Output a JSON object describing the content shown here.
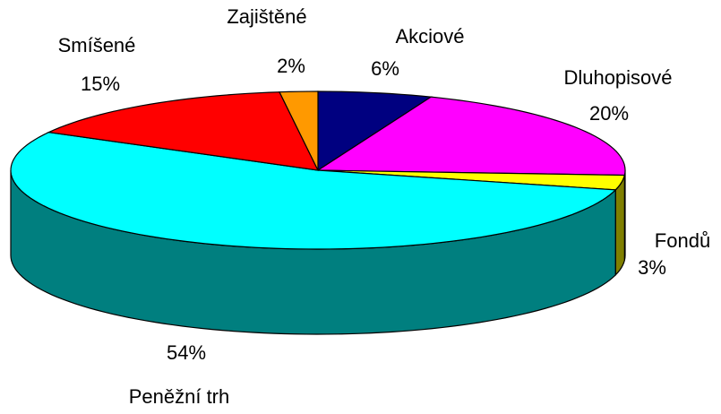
{
  "chart_data": {
    "type": "pie3d",
    "categories": [
      "Akciové",
      "Dluhopisové",
      "Fondů",
      "Peněžní trh",
      "Smíšené",
      "Zajištěné"
    ],
    "values": [
      6,
      20,
      3,
      54,
      15,
      2
    ],
    "value_labels": [
      "6%",
      "20%",
      "3%",
      "54%",
      "15%",
      "2%"
    ],
    "colors": [
      "#000080",
      "#ff00ff",
      "#ffff00",
      "#00ffff",
      "#ff0000",
      "#ff9900"
    ]
  }
}
